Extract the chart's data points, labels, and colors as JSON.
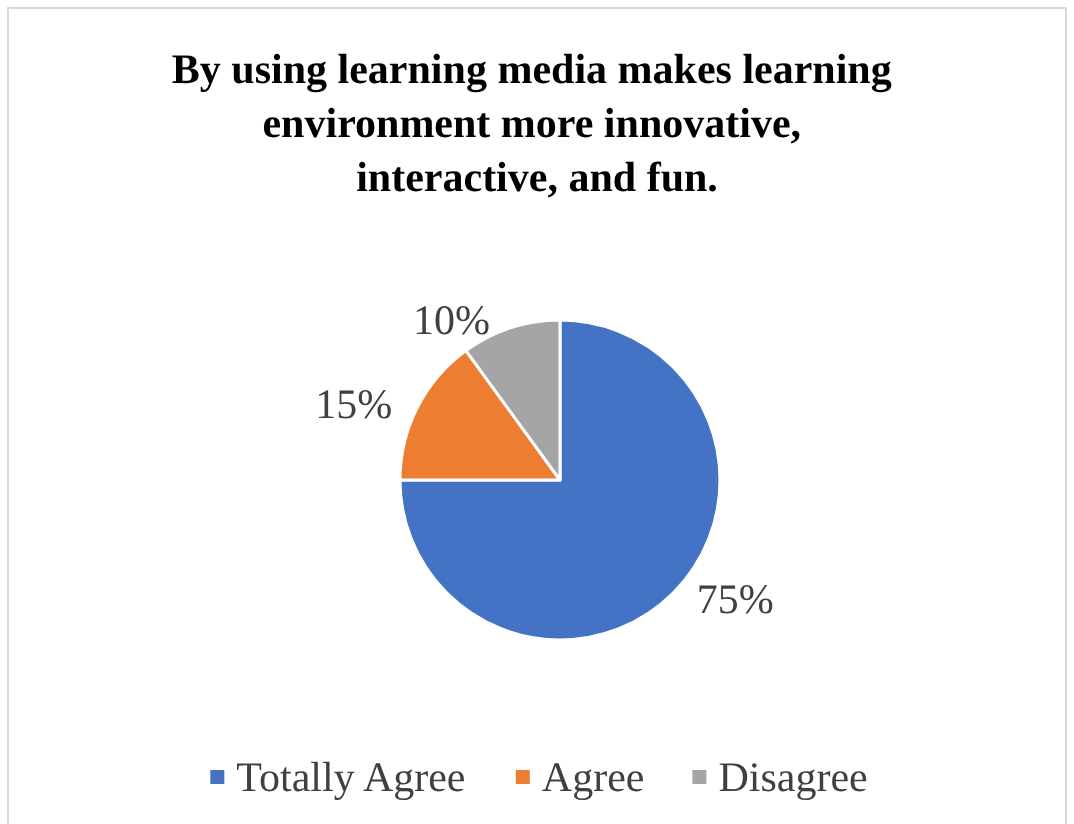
{
  "chart_data": {
    "type": "pie",
    "title": "By using learning media makes learning environment more innovative, interactive, and fun.",
    "categories": [
      "Totally Agree",
      "Agree",
      "Disagree"
    ],
    "values": [
      75,
      15,
      10
    ],
    "colors": [
      "#4472c4",
      "#ed7d31",
      "#a5a5a5"
    ],
    "value_labels": [
      "75%",
      "15%",
      "10%"
    ],
    "legend": "bottom"
  }
}
